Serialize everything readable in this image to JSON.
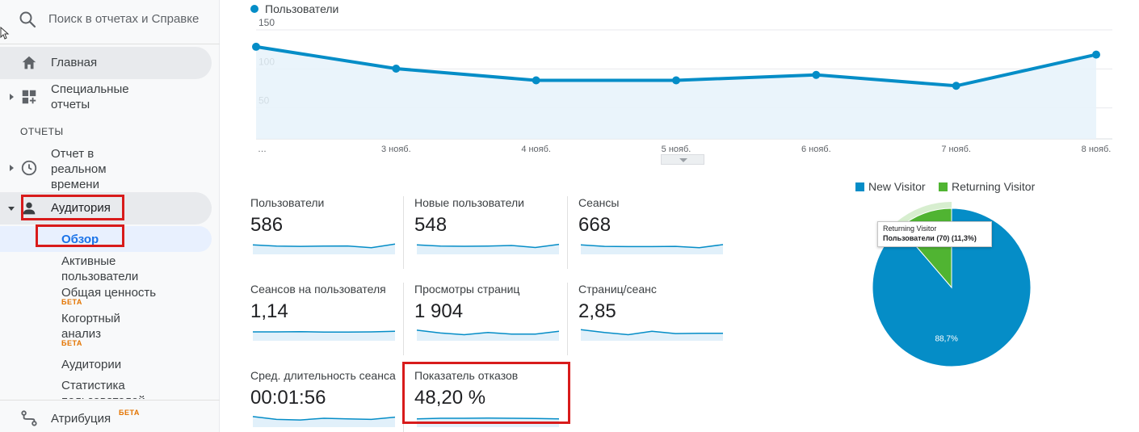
{
  "search": {
    "placeholder": "Поиск в отчетах и Справке"
  },
  "sidebar": {
    "home_label": "Главная",
    "custom_label": "Специальные отчеты",
    "section_reports": "ОТЧЕТЫ",
    "realtime_label": "Отчет в реальном времени",
    "audience_label": "Аудитория",
    "audience_children": [
      {
        "label": "Обзор",
        "active": true
      },
      {
        "label": "Активные пользователи"
      },
      {
        "label": "Общая ценность",
        "badge": "БЕТА"
      },
      {
        "label": "Когортный анализ",
        "badge": "БЕТА"
      },
      {
        "label": "Аудитории"
      },
      {
        "label": "Статистика пользователей"
      }
    ],
    "attribution_label": "Атрибуция",
    "attribution_badge": "БЕТА"
  },
  "chart_data": {
    "type": "line",
    "series": [
      {
        "name": "Пользователи",
        "color": "#058dc7",
        "values": [
          118,
          90,
          75,
          75,
          82,
          68,
          108
        ]
      }
    ],
    "x": [
      "…",
      "3 нояб.",
      "4 нояб.",
      "5 нояб.",
      "6 нояб.",
      "7 нояб.",
      "8 нояб."
    ],
    "y_ticks": [
      "150",
      "100",
      "50"
    ],
    "ylim": [
      0,
      150
    ],
    "grid": true,
    "legend": "top-left"
  },
  "metrics": [
    {
      "label": "Пользователи",
      "value": "586",
      "spark": [
        0.55,
        0.45,
        0.42,
        0.44,
        0.46,
        0.3,
        0.62
      ]
    },
    {
      "label": "Новые пользователи",
      "value": "548",
      "spark": [
        0.55,
        0.45,
        0.43,
        0.45,
        0.5,
        0.32,
        0.6
      ]
    },
    {
      "label": "Сеансы",
      "value": "668",
      "spark": [
        0.55,
        0.42,
        0.4,
        0.4,
        0.42,
        0.3,
        0.58
      ]
    },
    {
      "label": "Сеансов на пользователя",
      "value": "1,14",
      "spark": [
        0.5,
        0.5,
        0.52,
        0.48,
        0.48,
        0.5,
        0.55
      ]
    },
    {
      "label": "Просмотры страниц",
      "value": "1 904",
      "spark": [
        0.65,
        0.4,
        0.25,
        0.45,
        0.3,
        0.3,
        0.55
      ]
    },
    {
      "label": "Страниц/сеанс",
      "value": "2,85",
      "spark": [
        0.7,
        0.45,
        0.25,
        0.55,
        0.35,
        0.38,
        0.38
      ]
    },
    {
      "label": "Сред. длительность сеанса",
      "value": "00:01:56",
      "spark": [
        0.65,
        0.4,
        0.35,
        0.5,
        0.45,
        0.4,
        0.6
      ]
    },
    {
      "label": "Показатель отказов",
      "value": "48,20 %",
      "spark": [
        0.45,
        0.5,
        0.5,
        0.52,
        0.5,
        0.48,
        0.45
      ]
    }
  ],
  "pie": {
    "legend": [
      {
        "name": "New Visitor",
        "color": "#058dc7"
      },
      {
        "name": "Returning Visitor",
        "color": "#50b432"
      }
    ],
    "slices": [
      {
        "name": "New Visitor",
        "value": 88.7,
        "label": "88,7%"
      },
      {
        "name": "Returning Visitor",
        "value": 11.3
      }
    ],
    "tooltip": {
      "title": "Returning Visitor",
      "body": "Пользователи (70) (11,3%)"
    }
  }
}
